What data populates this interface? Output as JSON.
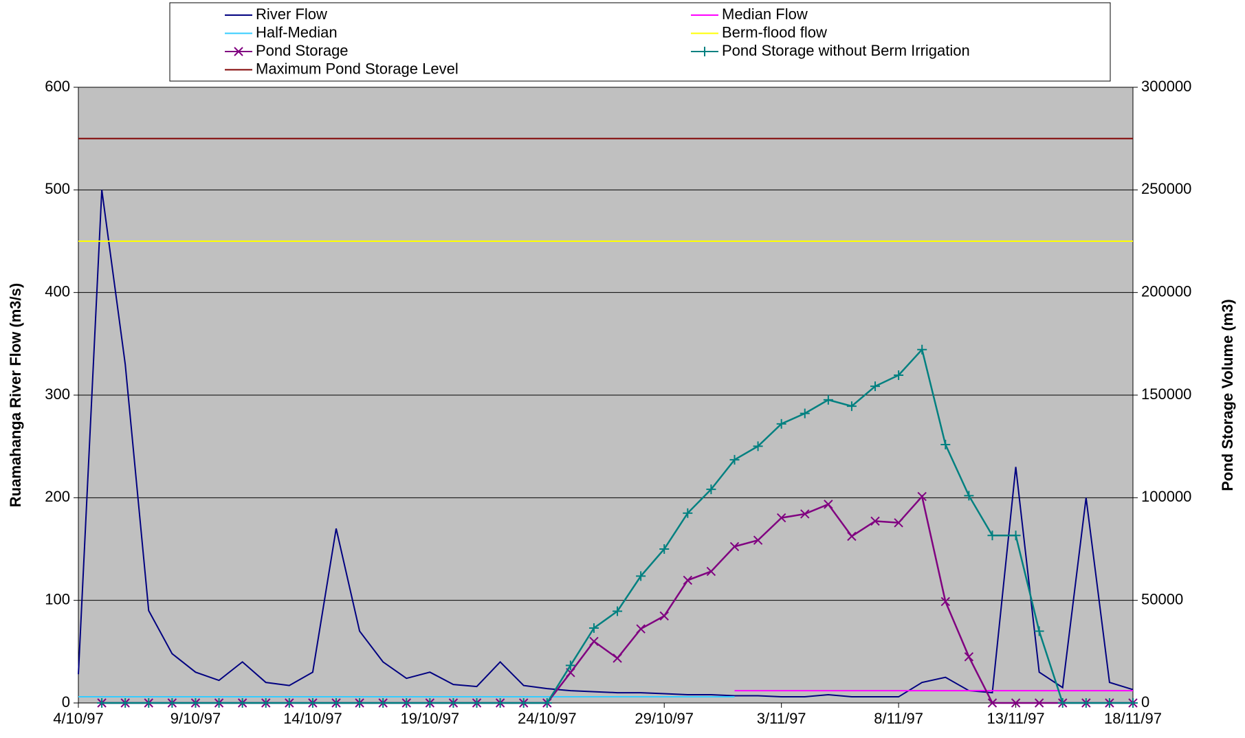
{
  "chart_data": {
    "type": "line",
    "xlabel": null,
    "ylabel": "Ruamahanga River Flow (m3/s)",
    "y2label": "Pond Storage Volume (m3)",
    "xlim": [
      "4/10/97",
      "18/11/97"
    ],
    "xticks": [
      "4/10/97",
      "9/10/97",
      "14/10/97",
      "19/10/97",
      "24/10/97",
      "29/10/97",
      "3/11/97",
      "8/11/97",
      "13/11/97",
      "18/11/97"
    ],
    "ylim": [
      0,
      600
    ],
    "yticks": [
      0,
      100,
      200,
      300,
      400,
      500,
      600
    ],
    "y2lim": [
      0,
      300000
    ],
    "y2ticks": [
      0,
      50000,
      100000,
      150000,
      200000,
      250000,
      300000
    ],
    "grid": true,
    "legend": "top",
    "series": [
      {
        "name": "River Flow",
        "color": "#000080",
        "marker": null,
        "x": [
          "4/10/97",
          "5/10/97",
          "6/10/97",
          "7/10/97",
          "8/10/97",
          "9/10/97",
          "10/10/97",
          "11/10/97",
          "12/10/97",
          "13/10/97",
          "14/10/97",
          "15/10/97",
          "16/10/97",
          "17/10/97",
          "18/10/97",
          "19/10/97",
          "20/10/97",
          "21/10/97",
          "22/10/97",
          "23/10/97",
          "24/10/97",
          "25/10/97",
          "26/10/97",
          "27/10/97",
          "28/10/97",
          "29/10/97",
          "30/10/97",
          "31/10/97",
          "1/11/97",
          "2/11/97",
          "3/11/97",
          "4/11/97",
          "5/11/97",
          "6/11/97",
          "7/11/97",
          "8/11/97",
          "9/11/97",
          "10/11/97",
          "11/11/97",
          "12/11/97",
          "13/11/97",
          "14/11/97",
          "15/11/97",
          "16/11/97",
          "17/11/97",
          "18/11/97"
        ],
        "values": [
          28,
          500,
          330,
          90,
          48,
          30,
          22,
          40,
          20,
          17,
          30,
          170,
          70,
          40,
          24,
          30,
          18,
          16,
          40,
          17,
          14,
          12,
          11,
          10,
          10,
          9,
          8,
          8,
          7,
          7,
          6,
          6,
          8,
          6,
          6,
          6,
          20,
          25,
          12,
          10,
          230,
          30,
          15,
          200,
          20,
          13
        ]
      },
      {
        "name": "Median Flow",
        "color": "#ff00ff",
        "marker": null,
        "x": [
          "1/11/97",
          "18/11/97"
        ],
        "values": [
          12,
          12
        ]
      },
      {
        "name": "Half-Median",
        "color": "#33ccff",
        "marker": null,
        "x": [
          "4/10/97",
          "1/11/97"
        ],
        "values": [
          6,
          6
        ]
      },
      {
        "name": "Berm-flood flow",
        "color": "#ffff00",
        "marker": null,
        "x": [
          "4/10/97",
          "18/11/97"
        ],
        "values": [
          450,
          450
        ]
      },
      {
        "name": "Pond Storage",
        "color": "#800080",
        "marker": "x",
        "axis": "y2",
        "x": [
          "5/10/97",
          "6/10/97",
          "7/10/97",
          "8/10/97",
          "9/10/97",
          "10/10/97",
          "11/10/97",
          "12/10/97",
          "13/10/97",
          "14/10/97",
          "15/10/97",
          "16/10/97",
          "17/10/97",
          "18/10/97",
          "19/10/97",
          "20/10/97",
          "21/10/97",
          "22/10/97",
          "23/10/97",
          "24/10/97",
          "25/10/97",
          "26/10/97",
          "27/10/97",
          "28/10/97",
          "29/10/97",
          "30/10/97",
          "31/10/97",
          "1/11/97",
          "2/11/97",
          "3/11/97",
          "4/11/97",
          "5/11/97",
          "6/11/97",
          "7/11/97",
          "8/11/97",
          "9/11/97",
          "10/11/97",
          "11/11/97",
          "12/11/97",
          "13/11/97",
          "14/11/97",
          "15/11/97",
          "16/11/97",
          "17/11/97",
          "18/11/97"
        ],
        "values": [
          0,
          0,
          0,
          0,
          0,
          0,
          0,
          0,
          0,
          0,
          0,
          0,
          0,
          0,
          0,
          0,
          0,
          0,
          0,
          0,
          14800,
          30000,
          21800,
          36100,
          42400,
          59800,
          64100,
          76200,
          79300,
          90200,
          92100,
          96800,
          81200,
          88600,
          87800,
          100600,
          49400,
          22500,
          0,
          0,
          0,
          0,
          0,
          0,
          0
        ]
      },
      {
        "name": "Pond Storage without Berm Irrigation",
        "color": "#008080",
        "marker": "+",
        "axis": "y2",
        "x": [
          "5/10/97",
          "6/10/97",
          "7/10/97",
          "8/10/97",
          "9/10/97",
          "10/10/97",
          "11/10/97",
          "12/10/97",
          "13/10/97",
          "14/10/97",
          "15/10/97",
          "16/10/97",
          "17/10/97",
          "18/10/97",
          "19/10/97",
          "20/10/97",
          "21/10/97",
          "22/10/97",
          "23/10/97",
          "24/10/97",
          "25/10/97",
          "26/10/97",
          "27/10/97",
          "28/10/97",
          "29/10/97",
          "30/10/97",
          "31/10/97",
          "1/11/97",
          "2/11/97",
          "3/11/97",
          "4/11/97",
          "5/11/97",
          "6/11/97",
          "7/11/97",
          "8/11/97",
          "9/11/97",
          "10/11/97",
          "11/11/97",
          "12/11/97",
          "13/11/97",
          "14/11/97",
          "15/11/97",
          "16/11/97",
          "17/11/97",
          "18/11/97"
        ],
        "values": [
          0,
          0,
          0,
          0,
          0,
          0,
          0,
          0,
          0,
          0,
          0,
          0,
          0,
          0,
          0,
          0,
          0,
          0,
          0,
          0,
          18300,
          36500,
          44700,
          61800,
          75000,
          92500,
          104100,
          118500,
          125100,
          136000,
          141100,
          147700,
          144600,
          154300,
          159700,
          172200,
          125900,
          101000,
          81600,
          81600,
          35000,
          0,
          0,
          0,
          0
        ]
      },
      {
        "name": "Maximum Pond Storage Level",
        "color": "#800000",
        "marker": null,
        "x": [
          "4/10/97",
          "18/11/97"
        ],
        "values": [
          550,
          550
        ]
      }
    ]
  }
}
